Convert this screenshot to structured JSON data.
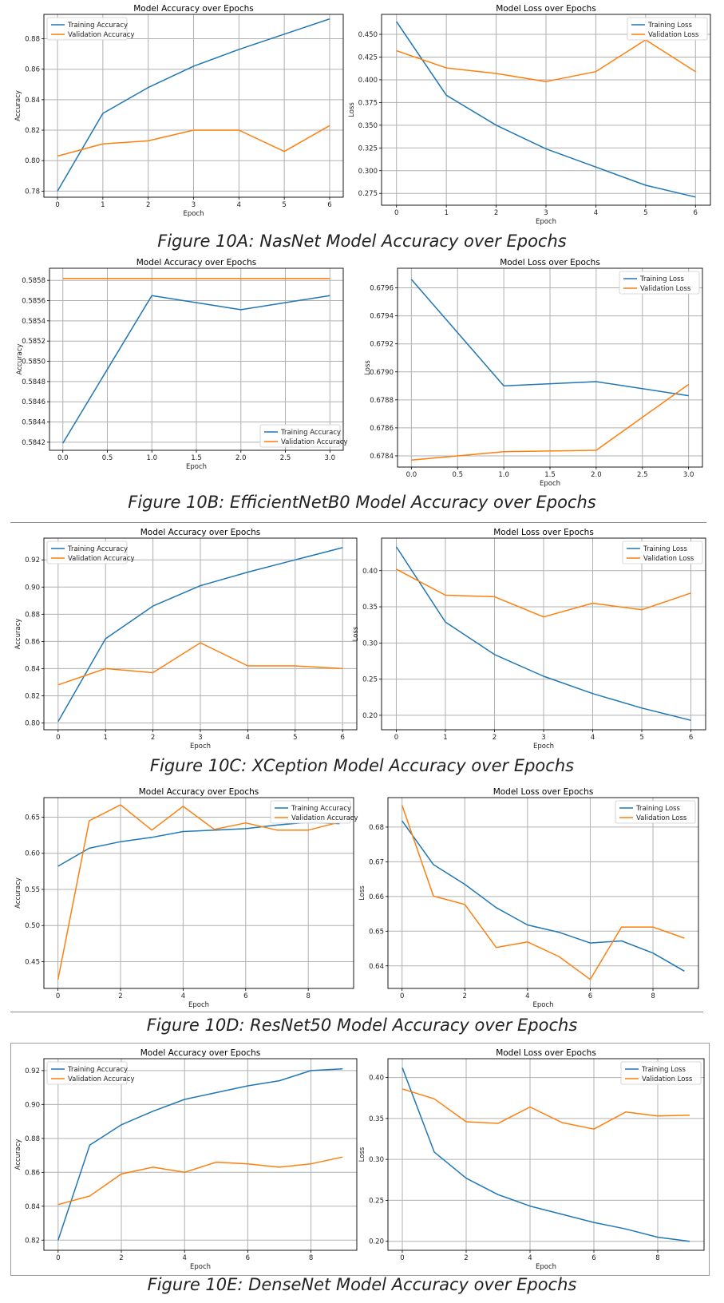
{
  "colors": {
    "training": "#1f77b4",
    "validation": "#ff7f0e"
  },
  "captions": [
    "Figure 10A: NasNet Model Accuracy over Epochs",
    "Figure 10B: EfficientNetB0 Model Accuracy over Epochs",
    "Figure 10C: XCeption Model Accuracy over Epochs",
    "Figure 10D: ResNet50 Model Accuracy over Epochs",
    "Figure 10E: DenseNet Model Accuracy over Epochs"
  ],
  "chart_data": [
    {
      "type": "line",
      "panel": "10A-accuracy",
      "title": "Model Accuracy over Epochs",
      "xlabel": "Epoch",
      "ylabel": "Accuracy",
      "xlim": [
        -0.3,
        6.3
      ],
      "ylim": [
        0.776,
        0.896
      ],
      "xticks": [
        0,
        1,
        2,
        3,
        4,
        5,
        6
      ],
      "yticks": [
        0.78,
        0.8,
        0.82,
        0.84,
        0.86,
        0.88
      ],
      "yticklabels": [
        "0.78",
        "0.80",
        "0.82",
        "0.84",
        "0.86",
        "0.88"
      ],
      "legend": "upper-left",
      "grid": true,
      "x": [
        0,
        1,
        2,
        3,
        4,
        5,
        6
      ],
      "series": [
        {
          "name": "Training Accuracy",
          "values": [
            0.78,
            0.831,
            0.848,
            0.862,
            0.873,
            0.883,
            0.893
          ]
        },
        {
          "name": "Validation Accuracy",
          "values": [
            0.803,
            0.811,
            0.813,
            0.82,
            0.82,
            0.806,
            0.823
          ]
        }
      ]
    },
    {
      "type": "line",
      "panel": "10A-loss",
      "title": "Model Loss over Epochs",
      "xlabel": "Epoch",
      "ylabel": "Loss",
      "xlim": [
        -0.3,
        6.3
      ],
      "ylim": [
        0.262,
        0.472
      ],
      "xticks": [
        0,
        1,
        2,
        3,
        4,
        5,
        6
      ],
      "yticks": [
        0.275,
        0.3,
        0.325,
        0.35,
        0.375,
        0.4,
        0.425,
        0.45
      ],
      "yticklabels": [
        "0.275",
        "0.300",
        "0.325",
        "0.350",
        "0.375",
        "0.400",
        "0.425",
        "0.450"
      ],
      "legend": "upper-right",
      "grid": true,
      "x": [
        0,
        1,
        2,
        3,
        4,
        5,
        6
      ],
      "series": [
        {
          "name": "Training Loss",
          "values": [
            0.464,
            0.383,
            0.35,
            0.324,
            0.304,
            0.284,
            0.271
          ]
        },
        {
          "name": "Validation Loss",
          "values": [
            0.432,
            0.413,
            0.407,
            0.398,
            0.409,
            0.444,
            0.409
          ]
        }
      ]
    },
    {
      "type": "line",
      "panel": "10B-accuracy",
      "title": "Model Accuracy over Epochs",
      "xlabel": "Epoch",
      "ylabel": "Accuracy",
      "xlim": [
        -0.15,
        3.15
      ],
      "ylim": [
        0.58412,
        0.58592
      ],
      "xticks": [
        0,
        0.5,
        1,
        1.5,
        2,
        2.5,
        3
      ],
      "xticklabels": [
        "0.0",
        "0.5",
        "1.0",
        "1.5",
        "2.0",
        "2.5",
        "3.0"
      ],
      "yticks": [
        0.5842,
        0.5844,
        0.5846,
        0.5848,
        0.585,
        0.5852,
        0.5854,
        0.5856,
        0.5858
      ],
      "yticklabels": [
        "0.5842",
        "0.5844",
        "0.5846",
        "0.5848",
        "0.5850",
        "0.5852",
        "0.5854",
        "0.5856",
        "0.5858"
      ],
      "legend": "lower-right",
      "grid": true,
      "x": [
        0,
        1,
        2,
        3
      ],
      "series": [
        {
          "name": "Training Accuracy",
          "values": [
            0.58419,
            0.58565,
            0.58551,
            0.58565
          ]
        },
        {
          "name": "Validation Accuracy",
          "values": [
            0.58582,
            0.58582,
            0.58582,
            0.58582
          ]
        }
      ]
    },
    {
      "type": "line",
      "panel": "10B-loss",
      "title": "Model Loss over Epochs",
      "xlabel": "Epoch",
      "ylabel": "Loss",
      "xlim": [
        -0.15,
        3.15
      ],
      "ylim": [
        0.67832,
        0.67974
      ],
      "xticks": [
        0,
        0.5,
        1,
        1.5,
        2,
        2.5,
        3
      ],
      "xticklabels": [
        "0.0",
        "0.5",
        "1.0",
        "1.5",
        "2.0",
        "2.5",
        "3.0"
      ],
      "yticks": [
        0.6784,
        0.6786,
        0.6788,
        0.679,
        0.6792,
        0.6794,
        0.6796
      ],
      "yticklabels": [
        "0.6784",
        "0.6786",
        "0.6788",
        "0.6790",
        "0.6792",
        "0.6794",
        "0.6796"
      ],
      "legend": "upper-right",
      "grid": true,
      "x": [
        0,
        1,
        2,
        3
      ],
      "series": [
        {
          "name": "Training Loss",
          "values": [
            0.67966,
            0.6789,
            0.67893,
            0.67883
          ]
        },
        {
          "name": "Validation Loss",
          "values": [
            0.67837,
            0.67843,
            0.67844,
            0.67891
          ]
        }
      ]
    },
    {
      "type": "line",
      "panel": "10C-accuracy",
      "title": "Model Accuracy over Epochs",
      "xlabel": "Epoch",
      "ylabel": "Accuracy",
      "xlim": [
        -0.3,
        6.3
      ],
      "ylim": [
        0.795,
        0.936
      ],
      "xticks": [
        0,
        1,
        2,
        3,
        4,
        5,
        6
      ],
      "yticks": [
        0.8,
        0.82,
        0.84,
        0.86,
        0.88,
        0.9,
        0.92
      ],
      "yticklabels": [
        "0.80",
        "0.82",
        "0.84",
        "0.86",
        "0.88",
        "0.90",
        "0.92"
      ],
      "legend": "upper-left",
      "grid": true,
      "x": [
        0,
        1,
        2,
        3,
        4,
        5,
        6
      ],
      "series": [
        {
          "name": "Training Accuracy",
          "values": [
            0.801,
            0.862,
            0.886,
            0.901,
            0.911,
            0.92,
            0.929
          ]
        },
        {
          "name": "Validation Accuracy",
          "values": [
            0.828,
            0.84,
            0.837,
            0.859,
            0.842,
            0.842,
            0.84
          ]
        }
      ]
    },
    {
      "type": "line",
      "panel": "10C-loss",
      "title": "Model Loss over Epochs",
      "xlabel": "Epoch",
      "ylabel": "Loss",
      "xlim": [
        -0.3,
        6.3
      ],
      "ylim": [
        0.18,
        0.445
      ],
      "xticks": [
        0,
        1,
        2,
        3,
        4,
        5,
        6
      ],
      "yticks": [
        0.2,
        0.25,
        0.3,
        0.35,
        0.4
      ],
      "yticklabels": [
        "0.20",
        "0.25",
        "0.30",
        "0.35",
        "0.40"
      ],
      "legend": "upper-right",
      "grid": true,
      "x": [
        0,
        1,
        2,
        3,
        4,
        5,
        6
      ],
      "series": [
        {
          "name": "Training Loss",
          "values": [
            0.433,
            0.329,
            0.284,
            0.254,
            0.23,
            0.21,
            0.193
          ]
        },
        {
          "name": "Validation Loss",
          "values": [
            0.402,
            0.366,
            0.364,
            0.336,
            0.355,
            0.346,
            0.369
          ]
        }
      ]
    },
    {
      "type": "line",
      "panel": "10D-accuracy",
      "title": "Model Accuracy over Epochs",
      "xlabel": "Epoch",
      "ylabel": "Accuracy",
      "xlim": [
        -0.45,
        9.45
      ],
      "ylim": [
        0.413,
        0.677
      ],
      "xticks": [
        0,
        2,
        4,
        6,
        8
      ],
      "yticks": [
        0.45,
        0.5,
        0.55,
        0.6,
        0.65
      ],
      "yticklabels": [
        "0.45",
        "0.50",
        "0.55",
        "0.60",
        "0.65"
      ],
      "legend": "upper-right",
      "grid": true,
      "x": [
        0,
        1,
        2,
        3,
        4,
        5,
        6,
        7,
        8,
        9
      ],
      "series": [
        {
          "name": "Training Accuracy",
          "values": [
            0.582,
            0.607,
            0.616,
            0.622,
            0.63,
            0.632,
            0.634,
            0.639,
            0.643,
            0.641
          ]
        },
        {
          "name": "Validation Accuracy",
          "values": [
            0.425,
            0.645,
            0.667,
            0.632,
            0.665,
            0.633,
            0.642,
            0.632,
            0.632,
            0.643
          ]
        }
      ]
    },
    {
      "type": "line",
      "panel": "10D-loss",
      "title": "Model Loss over Epochs",
      "xlabel": "Epoch",
      "ylabel": "Loss",
      "xlim": [
        -0.45,
        9.45
      ],
      "ylim": [
        0.6335,
        0.6885
      ],
      "xticks": [
        0,
        2,
        4,
        6,
        8
      ],
      "yticks": [
        0.64,
        0.65,
        0.66,
        0.67,
        0.68
      ],
      "yticklabels": [
        "0.64",
        "0.65",
        "0.66",
        "0.67",
        "0.68"
      ],
      "legend": "upper-right",
      "grid": true,
      "x": [
        0,
        1,
        2,
        3,
        4,
        5,
        6,
        7,
        8,
        9
      ],
      "series": [
        {
          "name": "Training Loss",
          "values": [
            0.6818,
            0.6692,
            0.6635,
            0.6568,
            0.6518,
            0.6497,
            0.6466,
            0.6472,
            0.6437,
            0.6385
          ]
        },
        {
          "name": "Validation Loss",
          "values": [
            0.6863,
            0.6601,
            0.6577,
            0.6453,
            0.6469,
            0.6427,
            0.6361,
            0.6512,
            0.6512,
            0.648
          ]
        }
      ]
    },
    {
      "type": "line",
      "panel": "10E-accuracy",
      "title": "Model Accuracy over Epochs",
      "xlabel": "Epoch",
      "ylabel": "Accuracy",
      "xlim": [
        -0.45,
        9.45
      ],
      "ylim": [
        0.814,
        0.927
      ],
      "xticks": [
        0,
        2,
        4,
        6,
        8
      ],
      "yticks": [
        0.82,
        0.84,
        0.86,
        0.88,
        0.9,
        0.92
      ],
      "yticklabels": [
        "0.82",
        "0.84",
        "0.86",
        "0.88",
        "0.90",
        "0.92"
      ],
      "legend": "upper-left",
      "grid": true,
      "x": [
        0,
        1,
        2,
        3,
        4,
        5,
        6,
        7,
        8,
        9
      ],
      "series": [
        {
          "name": "Training Accuracy",
          "values": [
            0.82,
            0.876,
            0.888,
            0.896,
            0.903,
            0.907,
            0.911,
            0.914,
            0.92,
            0.921
          ]
        },
        {
          "name": "Validation Accuracy",
          "values": [
            0.841,
            0.846,
            0.859,
            0.863,
            0.86,
            0.866,
            0.865,
            0.863,
            0.865,
            0.869
          ]
        }
      ]
    },
    {
      "type": "line",
      "panel": "10E-loss",
      "title": "Model Loss over Epochs",
      "xlabel": "Epoch",
      "ylabel": "Loss",
      "xlim": [
        -0.45,
        9.45
      ],
      "ylim": [
        0.189,
        0.423
      ],
      "xticks": [
        0,
        2,
        4,
        6,
        8
      ],
      "yticks": [
        0.2,
        0.25,
        0.3,
        0.35,
        0.4
      ],
      "yticklabels": [
        "0.20",
        "0.25",
        "0.30",
        "0.35",
        "0.40"
      ],
      "legend": "upper-right",
      "grid": true,
      "x": [
        0,
        1,
        2,
        3,
        4,
        5,
        6,
        7,
        8,
        9
      ],
      "series": [
        {
          "name": "Training Loss",
          "values": [
            0.412,
            0.309,
            0.277,
            0.257,
            0.243,
            0.233,
            0.223,
            0.215,
            0.205,
            0.2
          ]
        },
        {
          "name": "Validation Loss",
          "values": [
            0.386,
            0.374,
            0.346,
            0.344,
            0.364,
            0.345,
            0.337,
            0.358,
            0.353,
            0.354
          ]
        }
      ]
    }
  ]
}
